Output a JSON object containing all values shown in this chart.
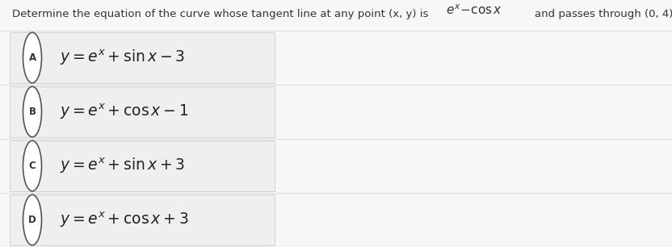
{
  "background_color": "#f7f7f7",
  "question_line": "Determine the equation of the curve whose tangent line at any point (x, y) is",
  "question_math": "$e^x - \\mathrm{cos}\\,x$",
  "question_end": "and passes through (0, 4).",
  "options": [
    {
      "label": "A",
      "formula": "$y = e^x + \\sin x - 3$"
    },
    {
      "label": "B",
      "formula": "$y = e^x + \\cos x - 1$"
    },
    {
      "label": "C",
      "formula": "$y = e^x + \\sin x + 3$"
    },
    {
      "label": "D",
      "formula": "$y = e^x + \\cos x + 3$"
    }
  ],
  "row_colors": [
    "#f5f5f5",
    "#f5f5f5",
    "#f5f5f5",
    "#f5f5f5"
  ],
  "divider_color": "#dddddd",
  "box_color": "#efefef",
  "box_border_color": "#cccccc",
  "circle_edge_color": "#555555",
  "circle_face_color": "#ffffff",
  "label_color": "#333333",
  "formula_color": "#222222",
  "question_color": "#333333",
  "font_size_question": 9.5,
  "font_size_options": 13.5,
  "font_size_label": 8.5
}
